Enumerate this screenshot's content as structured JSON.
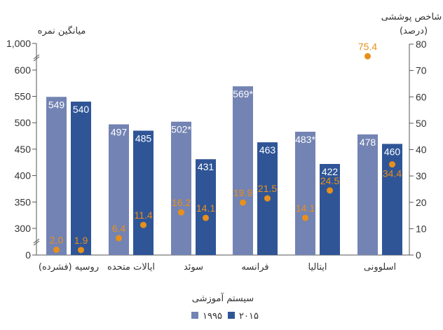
{
  "chart_data": {
    "type": "bar",
    "xlabel": "سیستم آموزشی",
    "ylabel": "میانگین نمره",
    "y2label": [
      "شاخص پوششی",
      "(درصد)"
    ],
    "categories": [
      "روسیه (فشرده)",
      "ایالات متحده",
      "سوئد",
      "فرانسه",
      "ایتالیا",
      "اسلوونی"
    ],
    "series": [
      {
        "name": "۱۹۹۵",
        "color": "#7383b3",
        "values": [
          549,
          497,
          502,
          569,
          483,
          478
        ],
        "labels": [
          "549",
          "497",
          "502*",
          "569*",
          "483*",
          "478"
        ]
      },
      {
        "name": "۲۰۱۵",
        "color": "#2f5597",
        "values": [
          540,
          485,
          431,
          463,
          422,
          460
        ],
        "labels": [
          "540",
          "485",
          "431",
          "463",
          "422",
          "460"
        ]
      }
    ],
    "coverage_series": [
      {
        "name": "۱۹۹۵",
        "values": [
          2.0,
          6.4,
          16.2,
          19.9,
          14.1,
          75.4
        ],
        "labels": [
          "2.0",
          "6.4",
          "16.2",
          "19.9",
          "14.1",
          "75.4"
        ]
      },
      {
        "name": "۲۰۱۵",
        "values": [
          1.9,
          11.4,
          14.1,
          21.5,
          24.5,
          34.4
        ],
        "labels": [
          "1.9",
          "11.4",
          "14.1",
          "21.5",
          "24.5",
          "34.4"
        ]
      }
    ],
    "dot_color": "#e8901a",
    "y_ticks": [
      "0",
      "300",
      "350",
      "400",
      "450",
      "500",
      "550",
      "600",
      "1,000"
    ],
    "y_tick_values": [
      0,
      300,
      350,
      400,
      450,
      500,
      550,
      600,
      1000
    ],
    "y_axis_break": true,
    "y2_ticks": [
      "0",
      "10",
      "20",
      "30",
      "40",
      "50",
      "60",
      "70",
      "80"
    ],
    "y2_tick_values": [
      0,
      10,
      20,
      30,
      40,
      50,
      60,
      70,
      80
    ],
    "y2lim": [
      0,
      80
    ],
    "legend": [
      "۱۹۹۵",
      "۲۰۱۵"
    ],
    "legend_position": "bottom-center",
    "grid": false
  }
}
